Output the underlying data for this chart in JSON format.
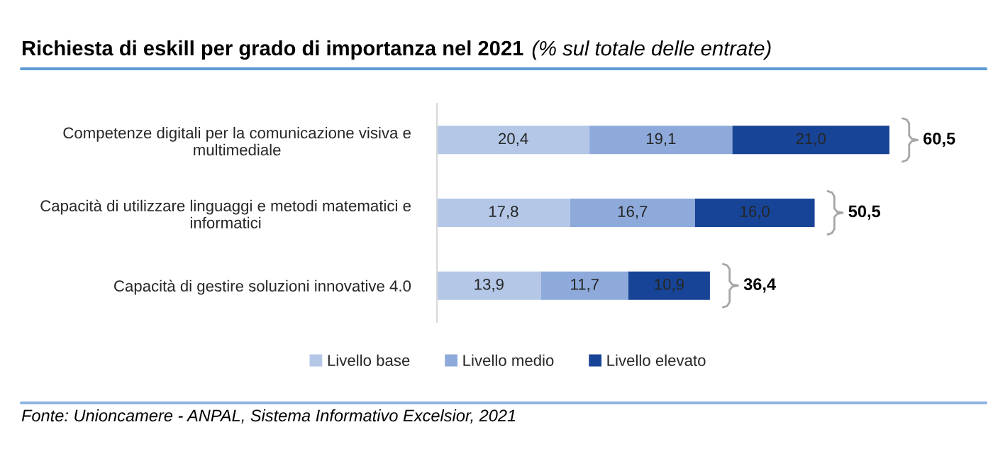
{
  "chart_data": {
    "type": "bar",
    "orientation": "horizontal",
    "stacked": true,
    "title": "Richiesta di eskill per grado di importanza nel 2021",
    "subtitle": "(% sul totale delle entrate)",
    "categories": [
      "Competenze digitali per la comunicazione visiva e multimediale",
      "Capacità di utilizzare linguaggi e metodi matematici e informatici",
      "Capacità di gestire soluzioni innovative 4.0"
    ],
    "series": [
      {
        "name": "Livello base",
        "color": "#b4c7e7",
        "values": [
          20.4,
          17.8,
          13.9
        ],
        "value_labels": [
          "20,4",
          "17,8",
          "13,9"
        ]
      },
      {
        "name": "Livello medio",
        "color": "#8eaadb",
        "values": [
          19.1,
          16.7,
          11.7
        ],
        "value_labels": [
          "19,1",
          "16,7",
          "11,7"
        ]
      },
      {
        "name": "Livello elevato",
        "color": "#174496",
        "values": [
          21.0,
          16.0,
          10.9
        ],
        "value_labels": [
          "21,0",
          "16,0",
          "10,9"
        ]
      }
    ],
    "totals": [
      "60,5",
      "50,5",
      "36,4"
    ],
    "annotations": [
      "Fonte: Unioncamere - ANPAL, Sistema Informativo Excelsior, 2021"
    ],
    "legend": "bottom",
    "tick_labels": "y"
  }
}
